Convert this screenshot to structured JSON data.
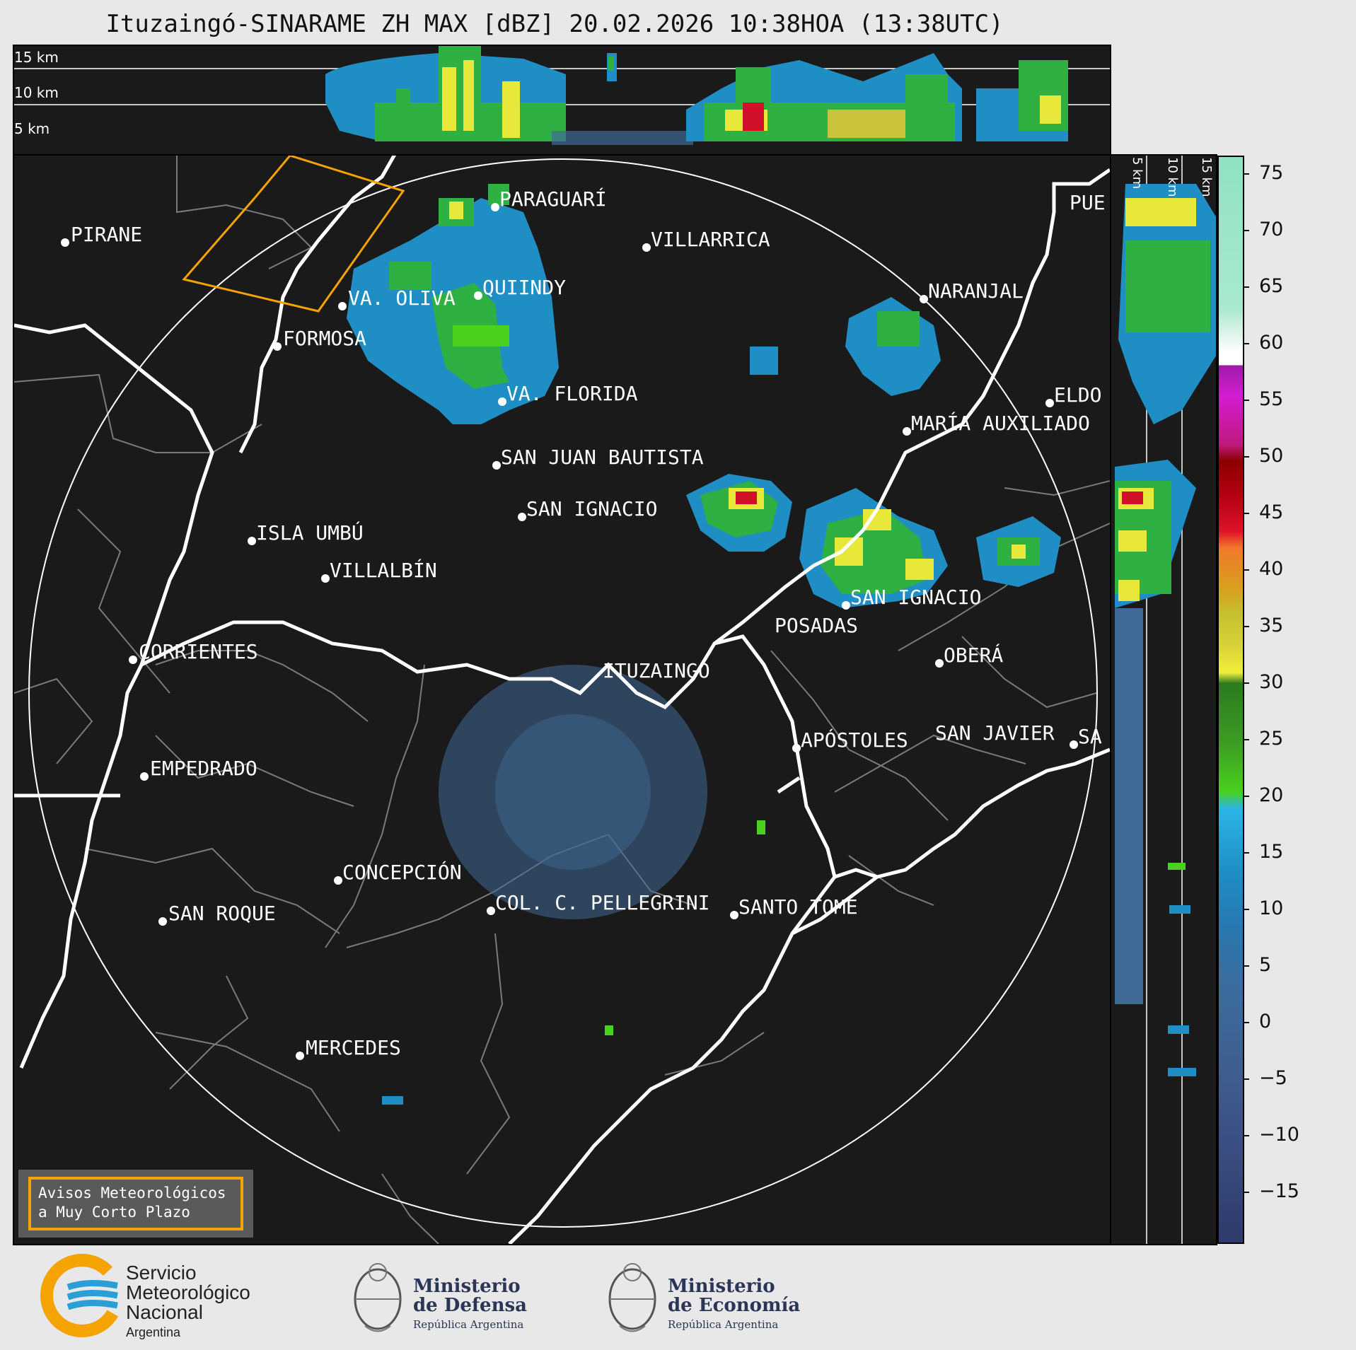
{
  "title": "Ituzaingó-SINARAME ZH MAX [dBZ] 20.02.2026 10:38HOA (13:38UTC)",
  "xsec_top_labels": [
    "15 km",
    "10 km",
    "5 km"
  ],
  "xsec_right_labels": [
    "5 km",
    "10 km",
    "15 km"
  ],
  "colorbar": {
    "ticks": [
      "75",
      "70",
      "65",
      "60",
      "55",
      "50",
      "45",
      "40",
      "35",
      "30",
      "25",
      "20",
      "15",
      "10",
      "5",
      "0",
      "−5",
      "−10",
      "−15"
    ],
    "range": [
      -20,
      77
    ]
  },
  "cities": [
    {
      "name": "PIRANE"
    },
    {
      "name": "PARAGUARÍ"
    },
    {
      "name": "VILLARRICA"
    },
    {
      "name": "QUIINDY"
    },
    {
      "name": "VA. OLIVA"
    },
    {
      "name": "FORMOSA"
    },
    {
      "name": "NARANJAL"
    },
    {
      "name": "PUE"
    },
    {
      "name": "VA. FLORIDA"
    },
    {
      "name": "ELDO"
    },
    {
      "name": "MARÍA AUXILIADO"
    },
    {
      "name": "SAN JUAN BAUTISTA"
    },
    {
      "name": "SAN IGNACIO"
    },
    {
      "name": "ISLA UMBÚ"
    },
    {
      "name": "VILLALBÍN"
    },
    {
      "name": "SAN IGNACIO"
    },
    {
      "name": "POSADAS"
    },
    {
      "name": "CORRIENTES"
    },
    {
      "name": "ITUZAINGÓ"
    },
    {
      "name": "OBERÁ"
    },
    {
      "name": "APÓSTOLES"
    },
    {
      "name": "SAN JAVIER"
    },
    {
      "name": "SA"
    },
    {
      "name": "EMPEDRADO"
    },
    {
      "name": "CONCEPCIÓN"
    },
    {
      "name": "COL. C. PELLEGRINI"
    },
    {
      "name": "SANTO TOMÉ"
    },
    {
      "name": "SAN ROQUE"
    },
    {
      "name": "MERCEDES"
    }
  ],
  "aviso": {
    "line1": "Avisos Meteorológicos",
    "line2": "a Muy Corto Plazo"
  },
  "footer": {
    "smn": {
      "line1": "Servicio",
      "line2": "Meteorológico",
      "line3": "Nacional",
      "country": "Argentina"
    },
    "defensa": {
      "line1": "Ministerio",
      "line2": "de Defensa",
      "country": "República Argentina"
    },
    "economia": {
      "line1": "Ministerio",
      "line2": "de Economía",
      "country": "República Argentina"
    }
  },
  "colors": {
    "background": "#1a1a1a",
    "warning_polygon": "#f5a300",
    "rivers": "#ffffff",
    "borders": "#7a7a7a"
  }
}
